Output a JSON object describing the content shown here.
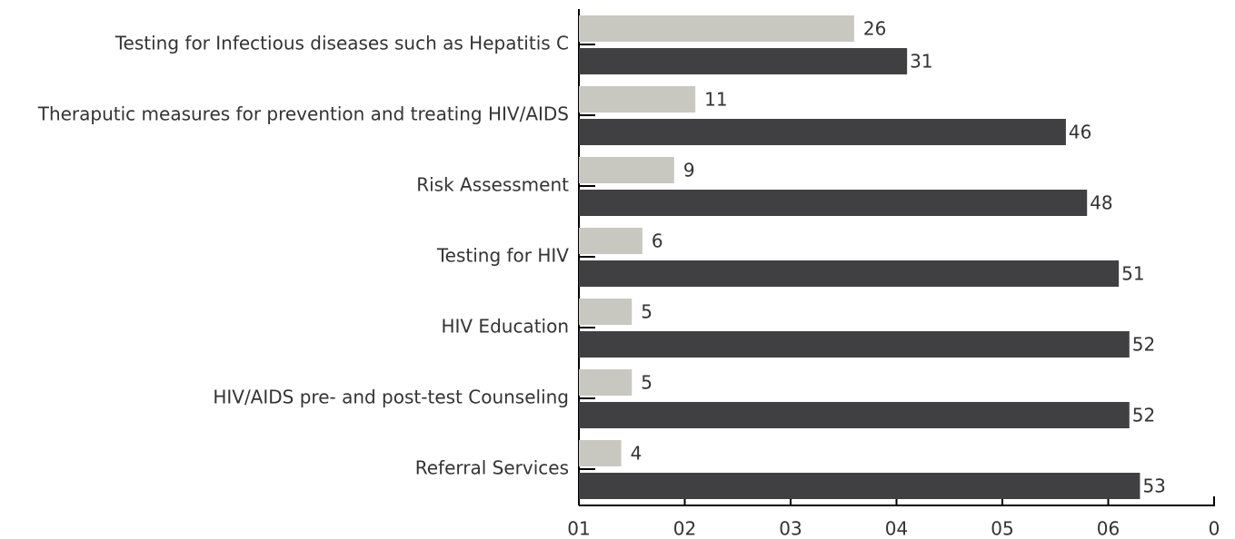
{
  "chart_data": {
    "type": "bar",
    "orientation": "horizontal",
    "categories": [
      "Testing for Infectious diseases such as Hepatitis C",
      "Theraputic measures for prevention and treating HIV/AIDS",
      "Risk Assessment",
      "Testing for HIV",
      "HIV Education",
      "HIV/AIDS pre- and post-test Counseling",
      "Referral Services"
    ],
    "series": [
      {
        "color": "#c8c8c0",
        "values": [
          26,
          11,
          9,
          6,
          5,
          5,
          4
        ]
      },
      {
        "color": "#404042",
        "values": [
          31,
          46,
          48,
          51,
          52,
          52,
          53
        ]
      }
    ],
    "xlim": [
      0,
      60
    ],
    "xticks": [
      {
        "value": 0,
        "label": "01"
      },
      {
        "value": 10,
        "label": "02"
      },
      {
        "value": 20,
        "label": "03"
      },
      {
        "value": 30,
        "label": "04"
      },
      {
        "value": 40,
        "label": "05"
      },
      {
        "value": 50,
        "label": "06"
      },
      {
        "value": 60,
        "label": "0"
      }
    ]
  }
}
